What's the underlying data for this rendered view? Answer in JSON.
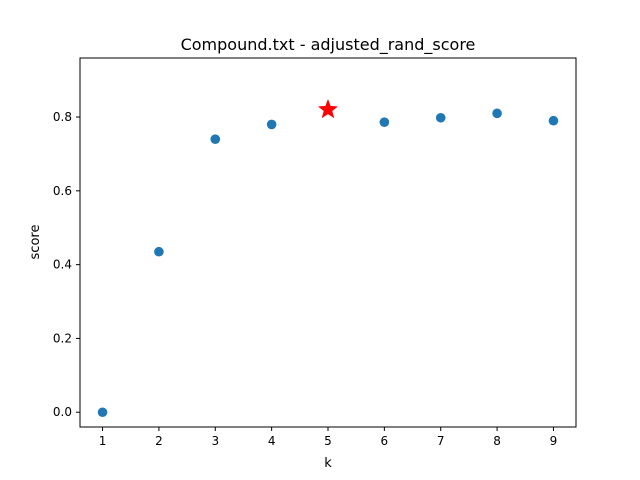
{
  "chart_data": {
    "type": "scatter",
    "title": "Compound.txt - adjusted_rand_score",
    "xlabel": "k",
    "ylabel": "score",
    "xlim": [
      0.6,
      9.4
    ],
    "ylim": [
      -0.04,
      0.96
    ],
    "xticks": [
      1,
      2,
      3,
      4,
      5,
      6,
      7,
      8,
      9
    ],
    "yticks": [
      0.0,
      0.2,
      0.4,
      0.6,
      0.8
    ],
    "xtick_labels": [
      "1",
      "2",
      "3",
      "4",
      "5",
      "6",
      "7",
      "8",
      "9"
    ],
    "ytick_labels": [
      "0.0",
      "0.2",
      "0.4",
      "0.6",
      "0.8"
    ],
    "grid": false,
    "legend": "none",
    "colors": {
      "points": "#1f77b4",
      "best": "#ff0000"
    },
    "series": [
      {
        "x": [
          1,
          2,
          3,
          4,
          6,
          7,
          8,
          9
        ],
        "y": [
          0.0,
          0.435,
          0.74,
          0.78,
          0.786,
          0.798,
          0.81,
          0.79
        ],
        "marker": "circle"
      },
      {
        "x": [
          5
        ],
        "y": [
          0.82
        ],
        "marker": "star"
      }
    ]
  }
}
